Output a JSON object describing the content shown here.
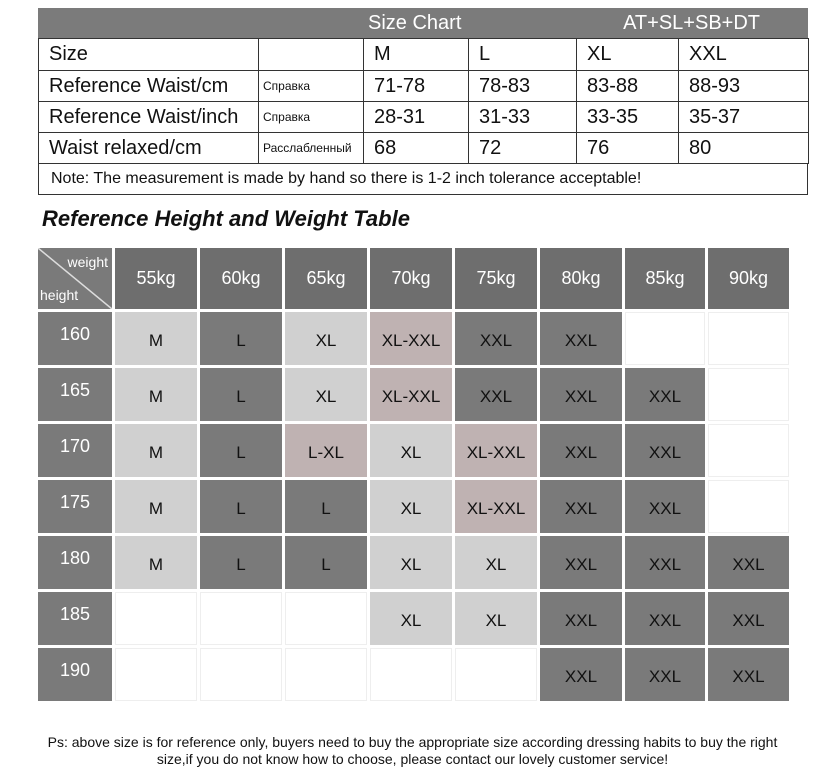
{
  "size_chart": {
    "title": "Size Chart",
    "code": "AT+SL+SB+DT",
    "size_label": "Size",
    "sizes": [
      "M",
      "L",
      "XL",
      "XXL"
    ],
    "rows": [
      {
        "label": "Reference Waist/cm",
        "note": "Справка",
        "values": [
          "71-78",
          "78-83",
          "83-88",
          "88-93"
        ]
      },
      {
        "label": "Reference Waist/inch",
        "note": "Справка",
        "values": [
          "28-31",
          "31-33",
          "33-35",
          "35-37"
        ]
      },
      {
        "label": "Waist relaxed/cm",
        "note": "Расслабленный",
        "values": [
          "68",
          "72",
          "76",
          "80"
        ]
      }
    ],
    "note": "Note: The measurement is made by hand so there is 1-2 inch tolerance acceptable!"
  },
  "reference_table": {
    "title": "Reference Height and Weight Table",
    "corner_top": "weight",
    "corner_bottom": "height",
    "weights": [
      "55kg",
      "60kg",
      "65kg",
      "70kg",
      "75kg",
      "80kg",
      "85kg",
      "90kg"
    ],
    "rows": [
      {
        "height": "160",
        "cells": [
          {
            "text": "M",
            "color": "#d0d0d0"
          },
          {
            "text": "L",
            "color": "#7a7a7a"
          },
          {
            "text": "XL",
            "color": "#d0d0d0"
          },
          {
            "text": "XL-XXL",
            "color": "#bfb2b2"
          },
          {
            "text": "XXL",
            "color": "#7a7a7a"
          },
          {
            "text": "XXL",
            "color": "#7a7a7a"
          },
          null,
          null
        ]
      },
      {
        "height": "165",
        "cells": [
          {
            "text": "M",
            "color": "#d0d0d0"
          },
          {
            "text": "L",
            "color": "#7a7a7a"
          },
          {
            "text": "XL",
            "color": "#d0d0d0"
          },
          {
            "text": "XL-XXL",
            "color": "#bfb2b2"
          },
          {
            "text": "XXL",
            "color": "#7a7a7a"
          },
          {
            "text": "XXL",
            "color": "#7a7a7a"
          },
          {
            "text": "XXL",
            "color": "#7a7a7a"
          },
          null
        ]
      },
      {
        "height": "170",
        "cells": [
          {
            "text": "M",
            "color": "#d0d0d0"
          },
          {
            "text": "L",
            "color": "#7a7a7a"
          },
          {
            "text": "L-XL",
            "color": "#bfb2b2"
          },
          {
            "text": "XL",
            "color": "#d0d0d0"
          },
          {
            "text": "XL-XXL",
            "color": "#bfb2b2"
          },
          {
            "text": "XXL",
            "color": "#7a7a7a"
          },
          {
            "text": "XXL",
            "color": "#7a7a7a"
          },
          null
        ]
      },
      {
        "height": "175",
        "cells": [
          {
            "text": "M",
            "color": "#d0d0d0"
          },
          {
            "text": "L",
            "color": "#7a7a7a"
          },
          {
            "text": "L",
            "color": "#7a7a7a"
          },
          {
            "text": "XL",
            "color": "#d0d0d0"
          },
          {
            "text": "XL-XXL",
            "color": "#bfb2b2"
          },
          {
            "text": "XXL",
            "color": "#7a7a7a"
          },
          {
            "text": "XXL",
            "color": "#7a7a7a"
          },
          null
        ]
      },
      {
        "height": "180",
        "cells": [
          {
            "text": "M",
            "color": "#d0d0d0"
          },
          {
            "text": "L",
            "color": "#7a7a7a"
          },
          {
            "text": "L",
            "color": "#7a7a7a"
          },
          {
            "text": "XL",
            "color": "#d0d0d0"
          },
          {
            "text": "XL",
            "color": "#d0d0d0"
          },
          {
            "text": "XXL",
            "color": "#7a7a7a"
          },
          {
            "text": "XXL",
            "color": "#7a7a7a"
          },
          {
            "text": "XXL",
            "color": "#7a7a7a"
          }
        ]
      },
      {
        "height": "185",
        "cells": [
          null,
          null,
          null,
          {
            "text": "XL",
            "color": "#d0d0d0"
          },
          {
            "text": "XL",
            "color": "#d0d0d0"
          },
          {
            "text": "XXL",
            "color": "#7a7a7a"
          },
          {
            "text": "XXL",
            "color": "#7a7a7a"
          },
          {
            "text": "XXL",
            "color": "#7a7a7a"
          }
        ]
      },
      {
        "height": "190",
        "cells": [
          null,
          null,
          null,
          null,
          null,
          {
            "text": "XXL",
            "color": "#7a7a7a"
          },
          {
            "text": "XXL",
            "color": "#7a7a7a"
          },
          {
            "text": "XXL",
            "color": "#7a7a7a"
          }
        ]
      }
    ]
  },
  "footer": "Ps: above size is for reference only, buyers need to buy the appropriate size according dressing habits to buy the right size,if you do not know how to choose, please contact our lovely customer service!"
}
